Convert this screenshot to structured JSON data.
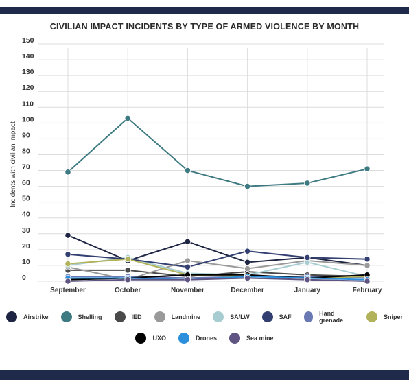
{
  "chart_data": {
    "type": "line",
    "title": "CIVILIAN IMPACT INCIDENTS BY TYPE OF ARMED VIOLENCE BY MONTH",
    "xlabel": "",
    "ylabel": "Incidents with civilian impact",
    "categories": [
      "September",
      "October",
      "November",
      "December",
      "January",
      "February"
    ],
    "ylim": [
      0,
      150
    ],
    "yticks": [
      0,
      10,
      20,
      30,
      40,
      50,
      60,
      70,
      80,
      90,
      100,
      110,
      120,
      130,
      140,
      150
    ],
    "grid": true,
    "legend_position": "bottom",
    "series": [
      {
        "name": "Airstrike",
        "color": "#1e2543",
        "values": [
          29,
          13,
          25,
          12,
          15,
          10
        ]
      },
      {
        "name": "Shelling",
        "color": "#3e7a82",
        "values": [
          69,
          103,
          70,
          60,
          62,
          71
        ]
      },
      {
        "name": "IED",
        "color": "#4a4a4a",
        "values": [
          7,
          7,
          3,
          6,
          4,
          3
        ]
      },
      {
        "name": "Landmine",
        "color": "#9a9a9a",
        "values": [
          9,
          1,
          13,
          8,
          13,
          10
        ]
      },
      {
        "name": "SA/LW",
        "color": "#a7cdd1",
        "values": [
          10,
          15,
          5,
          4,
          12,
          3
        ]
      },
      {
        "name": "SAF",
        "color": "#323f70",
        "values": [
          17,
          14,
          9,
          19,
          15,
          14
        ]
      },
      {
        "name": "Hand grenade",
        "color": "#6a78b4",
        "values": [
          3,
          3,
          2,
          3,
          3,
          2
        ]
      },
      {
        "name": "Sniper",
        "color": "#b2b25a",
        "values": [
          11,
          14,
          4,
          3,
          2,
          3
        ]
      },
      {
        "name": "UXO",
        "color": "#000000",
        "values": [
          1,
          2,
          4,
          4,
          2,
          4
        ]
      },
      {
        "name": "Drones",
        "color": "#2b8fdb",
        "values": [
          2,
          2,
          1,
          3,
          2,
          1
        ]
      },
      {
        "name": "Sea mine",
        "color": "#5f5482",
        "values": [
          0,
          1,
          1,
          2,
          1,
          0
        ]
      }
    ]
  }
}
